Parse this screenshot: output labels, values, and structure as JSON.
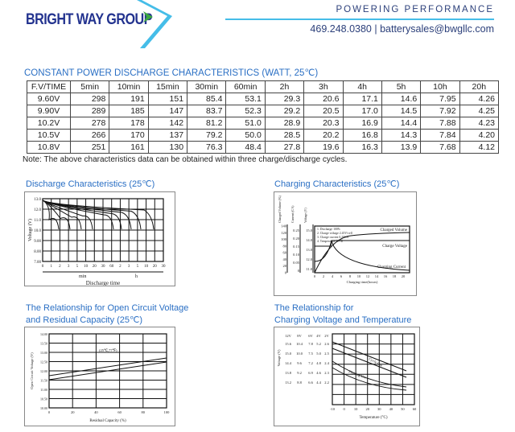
{
  "header": {
    "logo_text": "BRIGHT WAY GROUP",
    "tagline": "POWERING PERFORMANCE",
    "contact": "469.248.0380 | batterysales@bwgllc.com",
    "accent": "#45bde8",
    "brand": "#23338f",
    "arrow_green": "#3aa640"
  },
  "table": {
    "title": "CONSTANT POWER DISCHARGE CHARACTERISTICS (WATT, 25℃)",
    "headers": [
      "F.V/TIME",
      "5min",
      "10min",
      "15min",
      "30min",
      "60min",
      "2h",
      "3h",
      "4h",
      "5h",
      "10h",
      "20h"
    ],
    "rows": [
      [
        "9.60V",
        "298",
        "191",
        "151",
        "85.4",
        "53.1",
        "29.3",
        "20.6",
        "17.1",
        "14.6",
        "7.95",
        "4.26"
      ],
      [
        "9.90V",
        "289",
        "185",
        "147",
        "83.7",
        "52.3",
        "29.2",
        "20.5",
        "17.0",
        "14.5",
        "7.92",
        "4.25"
      ],
      [
        "10.2V",
        "278",
        "178",
        "142",
        "81.2",
        "51.0",
        "28.9",
        "20.3",
        "16.9",
        "14.4",
        "7.88",
        "4.23"
      ],
      [
        "10.5V",
        "266",
        "170",
        "137",
        "79.2",
        "50.0",
        "28.5",
        "20.2",
        "16.8",
        "14.3",
        "7.84",
        "4.20"
      ],
      [
        "10.8V",
        "251",
        "161",
        "130",
        "76.3",
        "48.4",
        "27.8",
        "19.6",
        "16.3",
        "13.9",
        "7.68",
        "4.12"
      ]
    ],
    "note": "Note: The above characteristics data can be obtained within three charge/discharge cycles."
  },
  "charts": {
    "discharge": {
      "title": "Discharge Characteristics (25℃)",
      "ylabel": "Voltage (V)",
      "xlabel": "Discharge time",
      "yticks": [
        "13.0",
        "12.0",
        "11.0",
        "10.0",
        "9.00",
        "8.00",
        "7.00"
      ],
      "xticks": [
        "0",
        "1",
        "2",
        "3",
        "5",
        "10",
        "20",
        "30",
        "60",
        "2",
        "3",
        "5",
        "10",
        "20",
        "30"
      ],
      "unit_min": "min",
      "unit_h": "h"
    },
    "charging": {
      "title": "Charging Characteristics (25℃)",
      "axis1": "Charged Volume (%)",
      "axis2": "Current (CA)",
      "axis3": "Voltage (V)",
      "t1": [
        "140",
        "120",
        "100",
        "80",
        "60",
        "40",
        "20",
        "0"
      ],
      "t2": [
        "0.25",
        "0.20",
        "0.15",
        "0.10",
        "0.05",
        "0"
      ],
      "t3": [
        "15.0",
        "14.0",
        "13.0",
        "12.0",
        "11.0"
      ],
      "xticks": [
        "0",
        "2",
        "4",
        "6",
        "8",
        "10",
        "12",
        "14",
        "16",
        "18",
        "20"
      ],
      "xlabel": "Charging time(hours)",
      "notes": [
        "1. Discharge 100%",
        "2. Charge voltage 2.45V/cell",
        "3. Charge current 0.20CA",
        "4. Temperature 25℃"
      ],
      "l1": "Charged Volume",
      "l2": "Charge Voltage",
      "l3": "Charging Current"
    },
    "ocv": {
      "title1": "The Relationship for Open Circuit Voltage",
      "title2": "and Residual Capacity (25℃)",
      "ylabel": "Open Circuit Voltage (V)",
      "xlabel": "Residual Capacity (%)",
      "yticks": [
        "14.00",
        "13.50",
        "13.00",
        "12.50",
        "12.00",
        "11.50",
        "11.00",
        "10.50",
        "10.00"
      ],
      "xticks": [
        "0",
        "20",
        "40",
        "60",
        "80",
        "100"
      ],
      "annot": "(25℃,77℉)"
    },
    "temp": {
      "title1": "The Relationship for",
      "title2": "Charging Voltage and Temperature",
      "ylabel": "Voltage (V)",
      "xlabel": "Temperature (°C)",
      "heads": [
        "12V",
        "8V",
        "6V",
        "4V",
        "2V"
      ],
      "rows": [
        [
          "15.6",
          "10.4",
          "7.8",
          "5.2",
          "2.6"
        ],
        [
          "15.0",
          "10.0",
          "7.5",
          "5.0",
          "2.5"
        ],
        [
          "14.4",
          "9.6",
          "7.2",
          "4.8",
          "2.4"
        ],
        [
          "13.8",
          "9.2",
          "6.9",
          "4.6",
          "2.3"
        ],
        [
          "13.2",
          "8.8",
          "6.6",
          "4.4",
          "2.2"
        ]
      ],
      "xticks": [
        "-10",
        "0",
        "10",
        "20",
        "30",
        "40",
        "50",
        "60"
      ],
      "l1": "Cycle Use",
      "l2": "Floating Use"
    }
  }
}
